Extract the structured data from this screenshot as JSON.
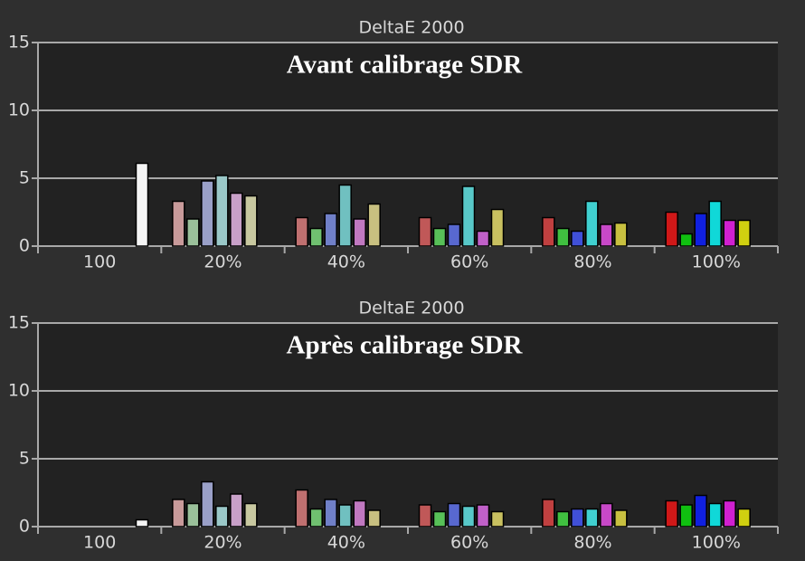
{
  "chart_data": [
    {
      "type": "bar",
      "title": "DeltaE 2000",
      "annotation": "Avant calibrage SDR",
      "categories": [
        "100",
        "20%",
        "40%",
        "60%",
        "80%",
        "100%"
      ],
      "ylim": [
        0,
        15
      ],
      "yticks": [
        0,
        5,
        10,
        15
      ],
      "grid": true,
      "series": [
        {
          "color": "#f4f4f4",
          "values": [
            6.1,
            null,
            null,
            null,
            null,
            null
          ]
        },
        {
          "colors": [
            null,
            "#c89a9a",
            "#c07070",
            "#c05858",
            "#c04040",
            "#d01818"
          ],
          "values": [
            null,
            3.3,
            2.1,
            2.1,
            2.1,
            2.5
          ]
        },
        {
          "colors": [
            null,
            "#9ac09a",
            "#70c070",
            "#58c058",
            "#40c040",
            "#10c010"
          ],
          "values": [
            null,
            2.0,
            1.3,
            1.3,
            1.3,
            0.9
          ]
        },
        {
          "colors": [
            null,
            "#9aa0c8",
            "#7080c8",
            "#5868d0",
            "#4050d8",
            "#1020e0"
          ],
          "values": [
            null,
            4.8,
            2.4,
            1.6,
            1.1,
            2.4
          ]
        },
        {
          "colors": [
            null,
            "#9ac8c8",
            "#70c0c0",
            "#58c8c8",
            "#40d0d0",
            "#10d8d8"
          ],
          "values": [
            null,
            5.2,
            4.5,
            4.4,
            3.3,
            3.3
          ]
        },
        {
          "colors": [
            null,
            "#c8a0c8",
            "#c078c0",
            "#c060c8",
            "#c848c8",
            "#d020d0"
          ],
          "values": [
            null,
            3.9,
            2.0,
            1.1,
            1.6,
            1.9
          ]
        },
        {
          "colors": [
            null,
            "#c8c8a0",
            "#c8c080",
            "#c8c060",
            "#c8c040",
            "#d0d010"
          ],
          "values": [
            null,
            3.7,
            3.1,
            2.7,
            1.7,
            1.9
          ]
        }
      ]
    },
    {
      "type": "bar",
      "title": "DeltaE 2000",
      "annotation": "Après calibrage SDR",
      "categories": [
        "100",
        "20%",
        "40%",
        "60%",
        "80%",
        "100%"
      ],
      "ylim": [
        0,
        15
      ],
      "yticks": [
        0,
        5,
        10,
        15
      ],
      "grid": true,
      "series": [
        {
          "color": "#f4f4f4",
          "values": [
            0.5,
            null,
            null,
            null,
            null,
            null
          ]
        },
        {
          "colors": [
            null,
            "#c89a9a",
            "#c07070",
            "#c05858",
            "#c04040",
            "#d01818"
          ],
          "values": [
            null,
            2.0,
            2.7,
            1.6,
            2.0,
            1.9
          ]
        },
        {
          "colors": [
            null,
            "#9ac09a",
            "#70c070",
            "#58c058",
            "#40c040",
            "#10c010"
          ],
          "values": [
            null,
            1.7,
            1.3,
            1.1,
            1.1,
            1.6
          ]
        },
        {
          "colors": [
            null,
            "#9aa0c8",
            "#7080c8",
            "#5868d0",
            "#4050d8",
            "#1020e0"
          ],
          "values": [
            null,
            3.3,
            2.0,
            1.7,
            1.3,
            2.3
          ]
        },
        {
          "colors": [
            null,
            "#9ac8c8",
            "#70c0c0",
            "#58c8c8",
            "#40d0d0",
            "#10d8d8"
          ],
          "values": [
            null,
            1.5,
            1.6,
            1.5,
            1.3,
            1.7
          ]
        },
        {
          "colors": [
            null,
            "#c8a0c8",
            "#c078c0",
            "#c060c8",
            "#c848c8",
            "#d020d0"
          ],
          "values": [
            null,
            2.4,
            1.9,
            1.6,
            1.7,
            1.9
          ]
        },
        {
          "colors": [
            null,
            "#c8c8a0",
            "#c8c080",
            "#c8c060",
            "#c8c040",
            "#d0d010"
          ],
          "values": [
            null,
            1.7,
            1.2,
            1.1,
            1.2,
            1.3
          ]
        }
      ]
    }
  ]
}
